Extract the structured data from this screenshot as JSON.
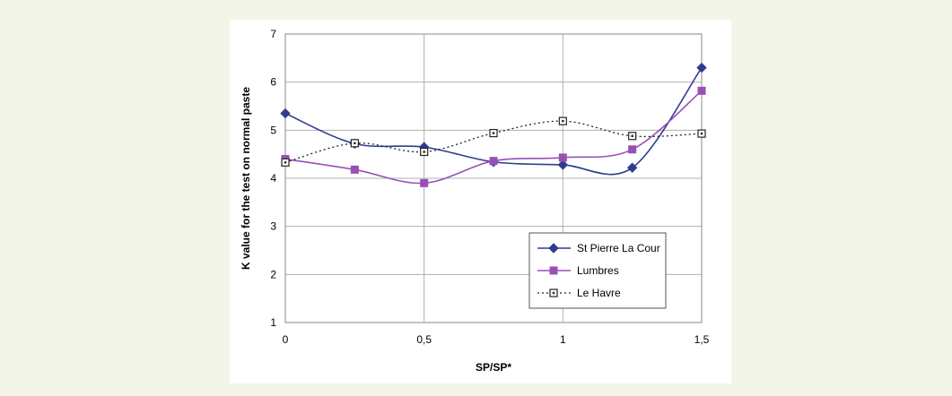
{
  "chart_data": {
    "type": "line",
    "xlabel": "SP/SP*",
    "ylabel": "K value for the test on normal paste",
    "xlim": [
      0,
      1.5
    ],
    "ylim": [
      1,
      7
    ],
    "x_ticks": [
      "0",
      "0,5",
      "1",
      "1,5"
    ],
    "y_ticks": [
      "1",
      "2",
      "3",
      "4",
      "5",
      "6",
      "7"
    ],
    "grid": true,
    "legend_position": "bottom-right",
    "series": [
      {
        "name": "St Pierre La Cour",
        "color": "#2f3c8c",
        "marker": "diamond",
        "line_style": "solid",
        "x": [
          0,
          0.25,
          0.5,
          0.75,
          1,
          1.25,
          1.5
        ],
        "y": [
          5.35,
          4.72,
          4.65,
          4.34,
          4.28,
          4.22,
          6.3
        ]
      },
      {
        "name": "Lumbres",
        "color": "#9a4fb5",
        "marker": "square",
        "line_style": "solid",
        "x": [
          0,
          0.25,
          0.5,
          0.75,
          1,
          1.25,
          1.5
        ],
        "y": [
          4.4,
          4.18,
          3.9,
          4.36,
          4.43,
          4.6,
          5.82
        ]
      },
      {
        "name": "Le Havre",
        "color": "#222222",
        "marker": "open-square",
        "line_style": "dotted",
        "x": [
          0,
          0.25,
          0.5,
          0.75,
          1,
          1.25,
          1.5
        ],
        "y": [
          4.33,
          4.73,
          4.55,
          4.94,
          5.19,
          4.88,
          4.93
        ]
      }
    ]
  }
}
